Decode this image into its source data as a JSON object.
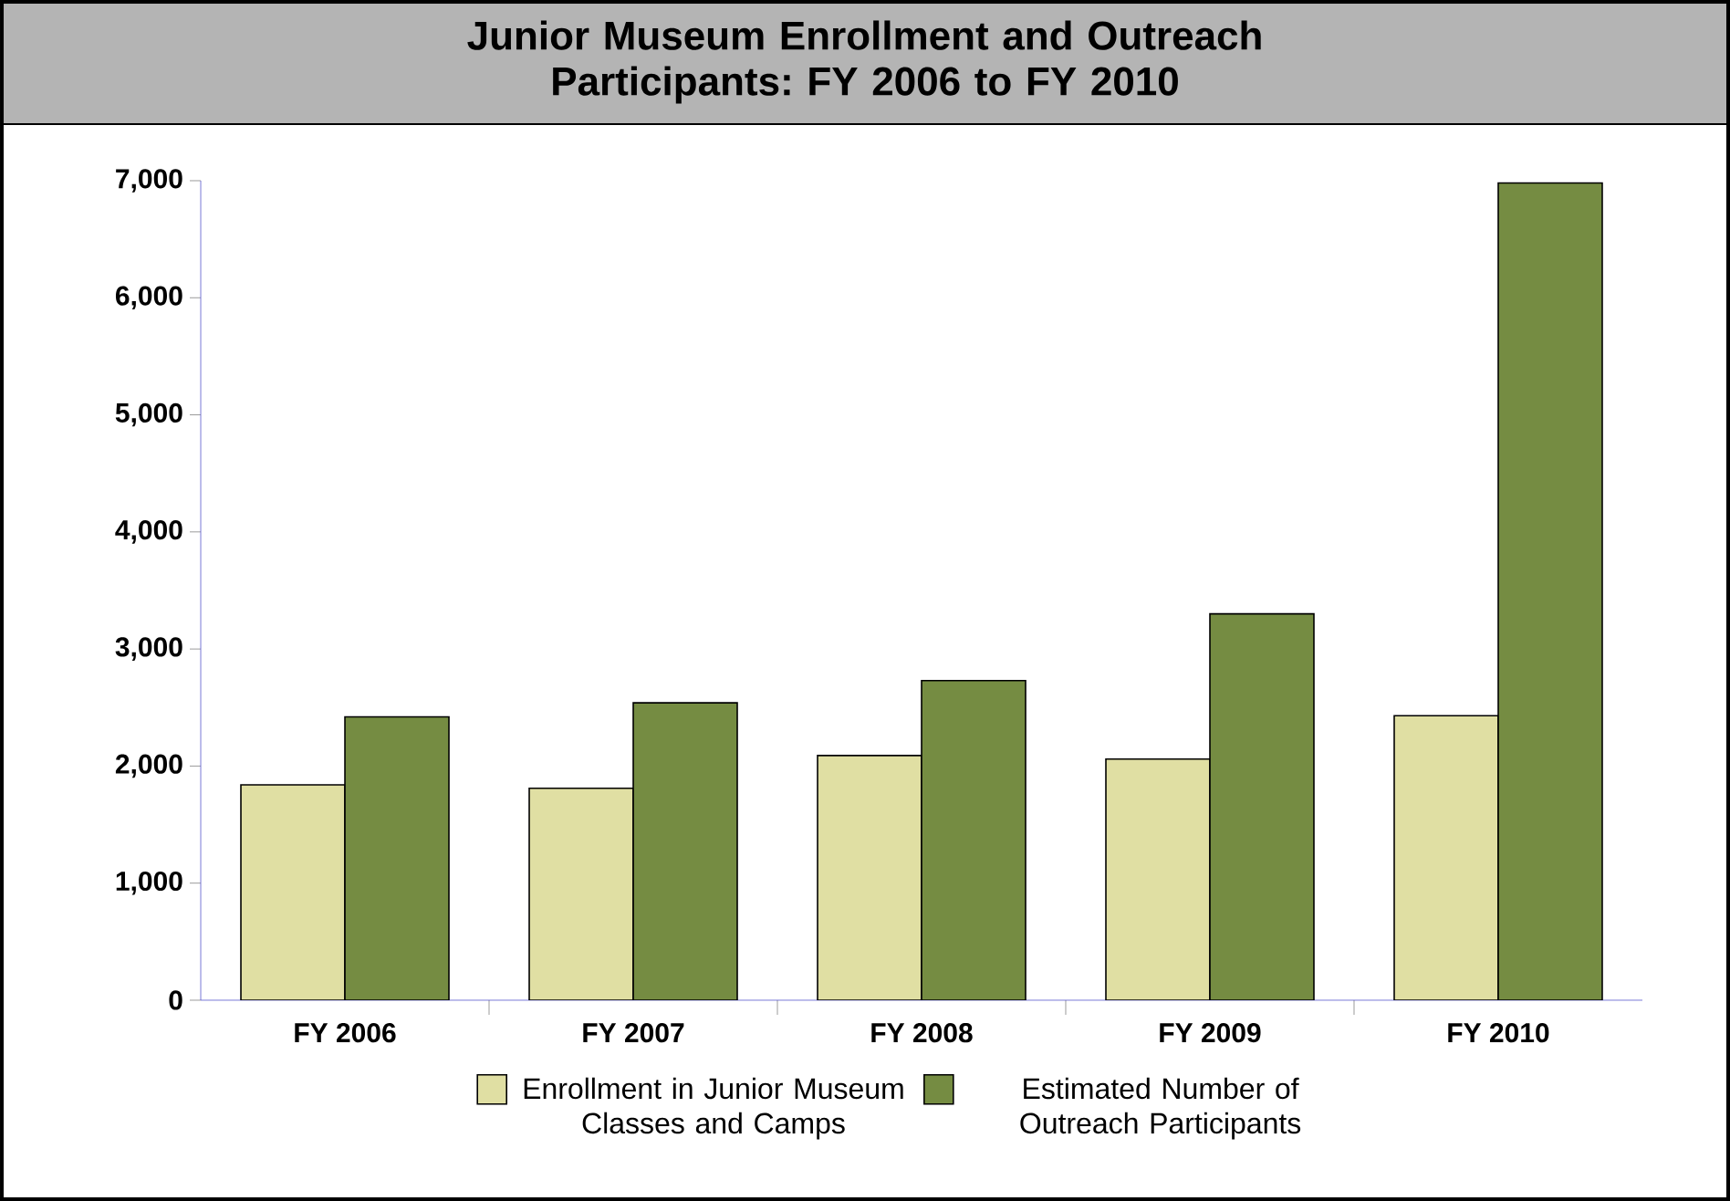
{
  "chart_data": {
    "type": "bar",
    "title": "Junior Museum Enrollment and Outreach Participants: FY 2006 to FY 2010",
    "categories": [
      "FY 2006",
      "FY 2007",
      "FY 2008",
      "FY 2009",
      "FY 2010"
    ],
    "series": [
      {
        "name": "Enrollment in Junior Museum Classes and Camps",
        "color": "#e0dfa3",
        "values": [
          1840,
          1810,
          2090,
          2060,
          2430
        ]
      },
      {
        "name": "Estimated Number of Outreach Participants",
        "color": "#758c42",
        "values": [
          2420,
          2540,
          2730,
          3300,
          6980
        ]
      }
    ],
    "ylim": [
      0,
      7000
    ],
    "yticks": [
      {
        "value": 0,
        "label": "0"
      },
      {
        "value": 1000,
        "label": "1,000"
      },
      {
        "value": 2000,
        "label": "2,000"
      },
      {
        "value": 3000,
        "label": "3,000"
      },
      {
        "value": 4000,
        "label": "4,000"
      },
      {
        "value": 5000,
        "label": "5,000"
      },
      {
        "value": 6000,
        "label": "6,000"
      },
      {
        "value": 7000,
        "label": "7,000"
      }
    ],
    "legend": "bottom"
  }
}
